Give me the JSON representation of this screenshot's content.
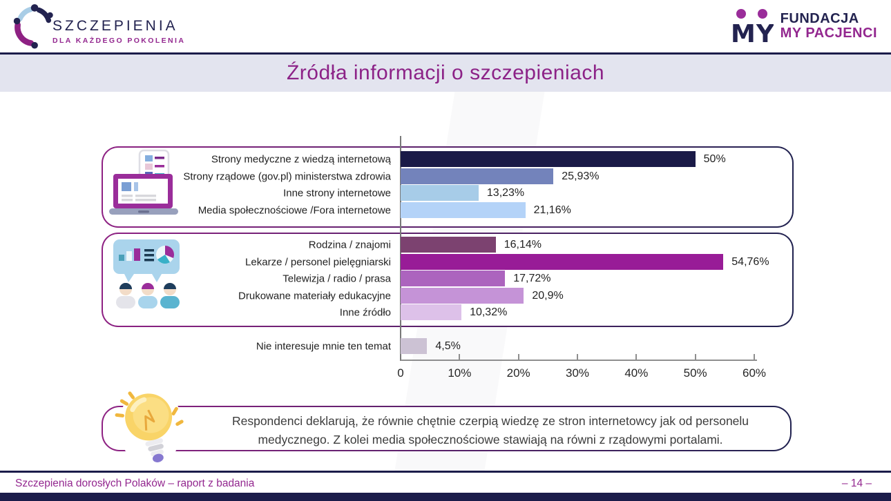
{
  "page_title": "Źródła informacji o szczepieniach",
  "header": {
    "brand_left": {
      "title": "SZCZEPIENIA",
      "subtitle": "DLA KAŻDEGO POKOLENIA"
    },
    "brand_right": {
      "monogram": "MY",
      "line1": "FUNDACJA",
      "line2": "MY PACJENCI"
    }
  },
  "chart_data": {
    "type": "bar",
    "orientation": "horizontal",
    "title": "Źródła informacji o szczepieniach",
    "xlabel": "",
    "ylabel": "",
    "xlim": [
      0,
      60
    ],
    "unit": "%",
    "grid": false,
    "legend": "none",
    "x_ticks": [
      "0",
      "10%",
      "20%",
      "30%",
      "40%",
      "50%",
      "60%"
    ],
    "x_tick_values": [
      0,
      10,
      20,
      30,
      40,
      50,
      60
    ],
    "groups": [
      {
        "name": "internet-sources",
        "icon": "laptop-phone-icon",
        "boxed": true,
        "items": [
          {
            "label": "Strony medyczne z wiedzą internetową",
            "value": 50,
            "value_label": "50%",
            "color": "#1a1a47"
          },
          {
            "label": "Strony rządowe (gov.pl) ministerstwa zdrowia",
            "value": 25.93,
            "value_label": "25,93%",
            "color": "#7383bb"
          },
          {
            "label": "Inne strony internetowe",
            "value": 13.23,
            "value_label": "13,23%",
            "color": "#a7cce8"
          },
          {
            "label": "Media społecznościowe /Fora internetowe",
            "value": 21.16,
            "value_label": "21,16%",
            "color": "#b4d3f8"
          }
        ]
      },
      {
        "name": "offline-sources",
        "icon": "people-discussion-icon",
        "boxed": true,
        "items": [
          {
            "label": "Rodzina / znajomi",
            "value": 16.14,
            "value_label": "16,14%",
            "color": "#7c4270"
          },
          {
            "label": "Lekarze / personel pielęgniarski",
            "value": 54.76,
            "value_label": "54,76%",
            "color": "#981c97"
          },
          {
            "label": "Telewizja / radio / prasa",
            "value": 17.72,
            "value_label": "17,72%",
            "color": "#ac64be"
          },
          {
            "label": "Drukowane materiały edukacyjne",
            "value": 20.9,
            "value_label": "20,9%",
            "color": "#c593d7"
          },
          {
            "label": "Inne źródło",
            "value": 10.32,
            "value_label": "10,32%",
            "color": "#ddc1e9"
          }
        ]
      },
      {
        "name": "not-interested",
        "icon": null,
        "boxed": false,
        "items": [
          {
            "label": "Nie interesuje mnie ten temat",
            "value": 4.5,
            "value_label": "4,5%",
            "color": "#ccc2d4"
          }
        ]
      }
    ]
  },
  "note": "Respondenci deklarują, że równie chętnie czerpią wiedzę ze stron internetowcy jak od personelu medycznego. Z kolei media społecznościowe stawiają na równi z rządowymi portalami.",
  "footer": {
    "report_title": "Szczepienia dorosłych Polaków – raport z badania",
    "page_number": "– 14 –"
  },
  "colors": {
    "navy": "#1b1c4a",
    "purple": "#8e2183",
    "title_band_bg": "#e3e4ef",
    "axis": "#8e8e8e"
  }
}
